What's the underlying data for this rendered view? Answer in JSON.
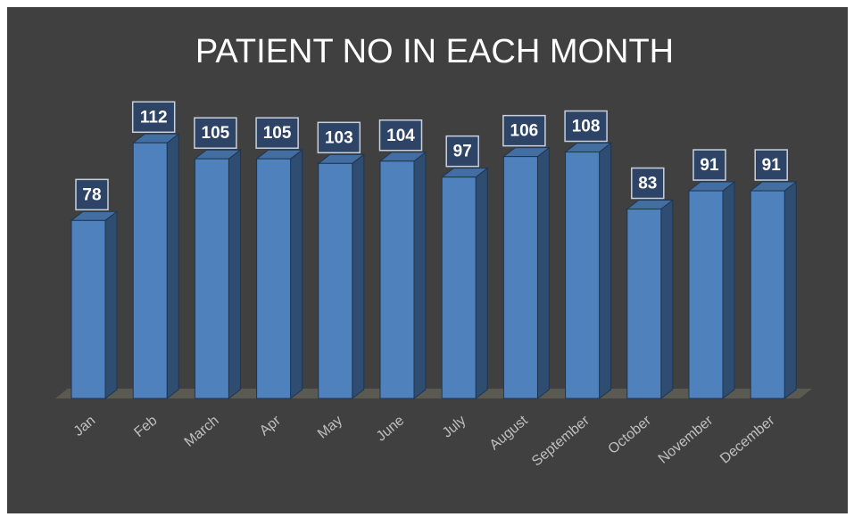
{
  "chart_data": {
    "type": "bar",
    "title": "PATIENT NO IN EACH MONTH",
    "categories": [
      "Jan",
      "Feb",
      "March",
      "Apr",
      "May",
      "June",
      "July",
      "August",
      "September",
      "October",
      "November",
      "December"
    ],
    "values": [
      78,
      112,
      105,
      105,
      103,
      104,
      97,
      106,
      108,
      83,
      91,
      91
    ],
    "color": "#4f81bd"
  }
}
